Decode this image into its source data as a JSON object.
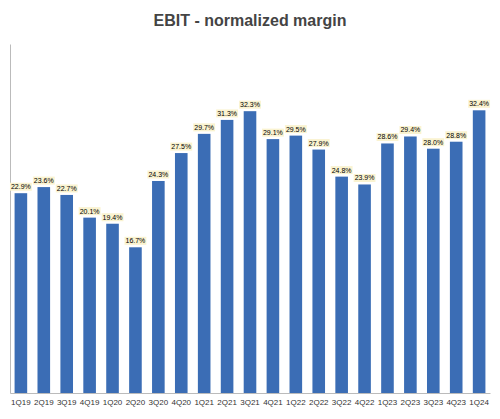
{
  "chart_data": {
    "type": "bar",
    "title": "EBIT - normalized margin",
    "categories": [
      "1Q19",
      "2Q19",
      "3Q19",
      "4Q19",
      "1Q20",
      "2Q20",
      "3Q20",
      "4Q20",
      "1Q21",
      "2Q21",
      "3Q21",
      "4Q21",
      "1Q22",
      "2Q22",
      "3Q22",
      "4Q22",
      "1Q23",
      "2Q23",
      "3Q23",
      "4Q23",
      "1Q24"
    ],
    "values": [
      22.9,
      23.6,
      22.7,
      20.1,
      19.4,
      16.7,
      24.3,
      27.5,
      29.7,
      31.3,
      32.3,
      29.1,
      29.5,
      27.9,
      24.8,
      23.9,
      28.6,
      29.4,
      28.0,
      28.8,
      32.4
    ],
    "value_labels": [
      "22.9%",
      "23.6%",
      "22.7%",
      "20.1%",
      "19.4%",
      "16.7%",
      "24.3%",
      "27.5%",
      "29.7%",
      "31.3%",
      "32.3%",
      "29.1%",
      "29.5%",
      "27.9%",
      "24.8%",
      "23.9%",
      "28.6%",
      "29.4%",
      "28.0%",
      "28.8%",
      "32.4%"
    ],
    "color": "#3b6db5",
    "ylim": [
      0,
      40
    ],
    "grid": false,
    "data_labels": true,
    "tick_labels": "x"
  }
}
